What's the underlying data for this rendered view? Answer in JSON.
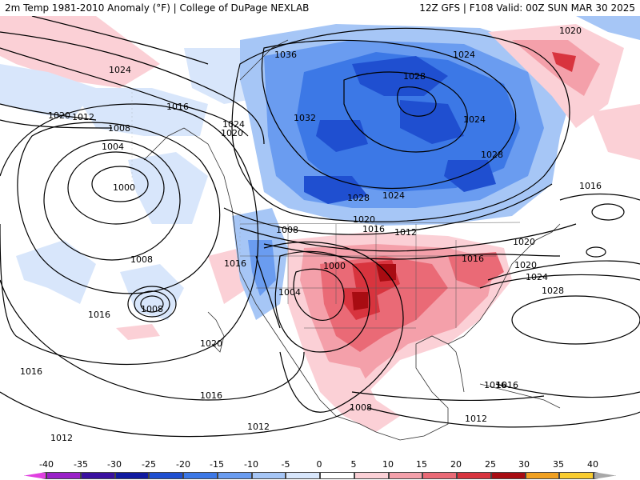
{
  "header": {
    "left_text": "2m Temp 1981-2010 Anomaly (°F) | College of DuPage NEXLAB",
    "right_text": "12Z GFS | F108 Valid: 00Z SUN MAR 30 2025"
  },
  "map": {
    "isobar_labels": [
      {
        "name": "isobar-1036",
        "text": "1036"
      },
      {
        "name": "isobar-1028-hudson",
        "text": "1028"
      },
      {
        "name": "isobar-1024-greenland",
        "text": "1024"
      },
      {
        "name": "isobar-1020-ne",
        "text": "1020"
      },
      {
        "name": "isobar-1024-nw",
        "text": "1024"
      },
      {
        "name": "isobar-1020-alaska",
        "text": "1020"
      },
      {
        "name": "isobar-1012-alaska",
        "text": "1012"
      },
      {
        "name": "isobar-1016-alaska",
        "text": "1016"
      },
      {
        "name": "isobar-1008-gulf",
        "text": "1008"
      },
      {
        "name": "isobar-1004-gulf",
        "text": "1004"
      },
      {
        "name": "isobar-1000-low",
        "text": "1000"
      },
      {
        "name": "isobar-1024-bc",
        "text": "1024"
      },
      {
        "name": "isobar-1020-bc",
        "text": "1020"
      },
      {
        "name": "isobar-1032",
        "text": "1032"
      },
      {
        "name": "isobar-1024-quebec",
        "text": "1024"
      },
      {
        "name": "isobar-1028-quebec",
        "text": "1028"
      },
      {
        "name": "isobar-1028-plains",
        "text": "1028"
      },
      {
        "name": "isobar-1024-plains",
        "text": "1024"
      },
      {
        "name": "isobar-1016-ontario",
        "text": "1016"
      },
      {
        "name": "isobar-1020-plains",
        "text": "1020"
      },
      {
        "name": "isobar-1016-plains",
        "text": "1016"
      },
      {
        "name": "isobar-1012-plains",
        "text": "1012"
      },
      {
        "name": "isobar-1020-maine",
        "text": "1020"
      },
      {
        "name": "isobar-1008-rockies",
        "text": "1008"
      },
      {
        "name": "isobar-1016-ca",
        "text": "1016"
      },
      {
        "name": "isobar-1000-sw",
        "text": "1000"
      },
      {
        "name": "isobar-1004-sw",
        "text": "1004"
      },
      {
        "name": "isobar-1016-east",
        "text": "1016"
      },
      {
        "name": "isobar-1020-atlantic",
        "text": "1020"
      },
      {
        "name": "isobar-1024-atlantic",
        "text": "1024"
      },
      {
        "name": "isobar-1028-atlantic",
        "text": "1028"
      },
      {
        "name": "isobar-1008-pacific",
        "text": "1008"
      },
      {
        "name": "isobar-1008-pac-low",
        "text": "1008"
      },
      {
        "name": "isobar-1016-pacific",
        "text": "1016"
      },
      {
        "name": "isobar-1020-pacific",
        "text": "1020"
      },
      {
        "name": "isobar-1016-sw-pac",
        "text": "1016"
      },
      {
        "name": "isobar-1016-mexico",
        "text": "1016"
      },
      {
        "name": "isobar-1012-pac-s",
        "text": "1012"
      },
      {
        "name": "isobar-1016-left",
        "text": "1016"
      },
      {
        "name": "isobar-1012-left",
        "text": "1012"
      },
      {
        "name": "isobar-1008-mexico",
        "text": "1008"
      },
      {
        "name": "isobar-1012-caribbean",
        "text": "1012"
      },
      {
        "name": "isobar-1016-caribbean",
        "text": "1016"
      }
    ]
  },
  "colorbar": {
    "labels": [
      "-40",
      "-35",
      "-30",
      "-25",
      "-20",
      "-15",
      "-10",
      "-5",
      "0",
      "5",
      "10",
      "15",
      "20",
      "25",
      "30",
      "35",
      "40"
    ],
    "colors": [
      "#e040e0",
      "#9a20c8",
      "#3a10a0",
      "#101aa0",
      "#1f4fd0",
      "#3c78e6",
      "#6a9cf0",
      "#a6c6f6",
      "#d8e6fb",
      "#ffffff",
      "#fbd0d6",
      "#f4a0aa",
      "#ea6a76",
      "#d8343e",
      "#a80c12",
      "#f0a020",
      "#f8cc30",
      "#a8a8a8"
    ]
  }
}
